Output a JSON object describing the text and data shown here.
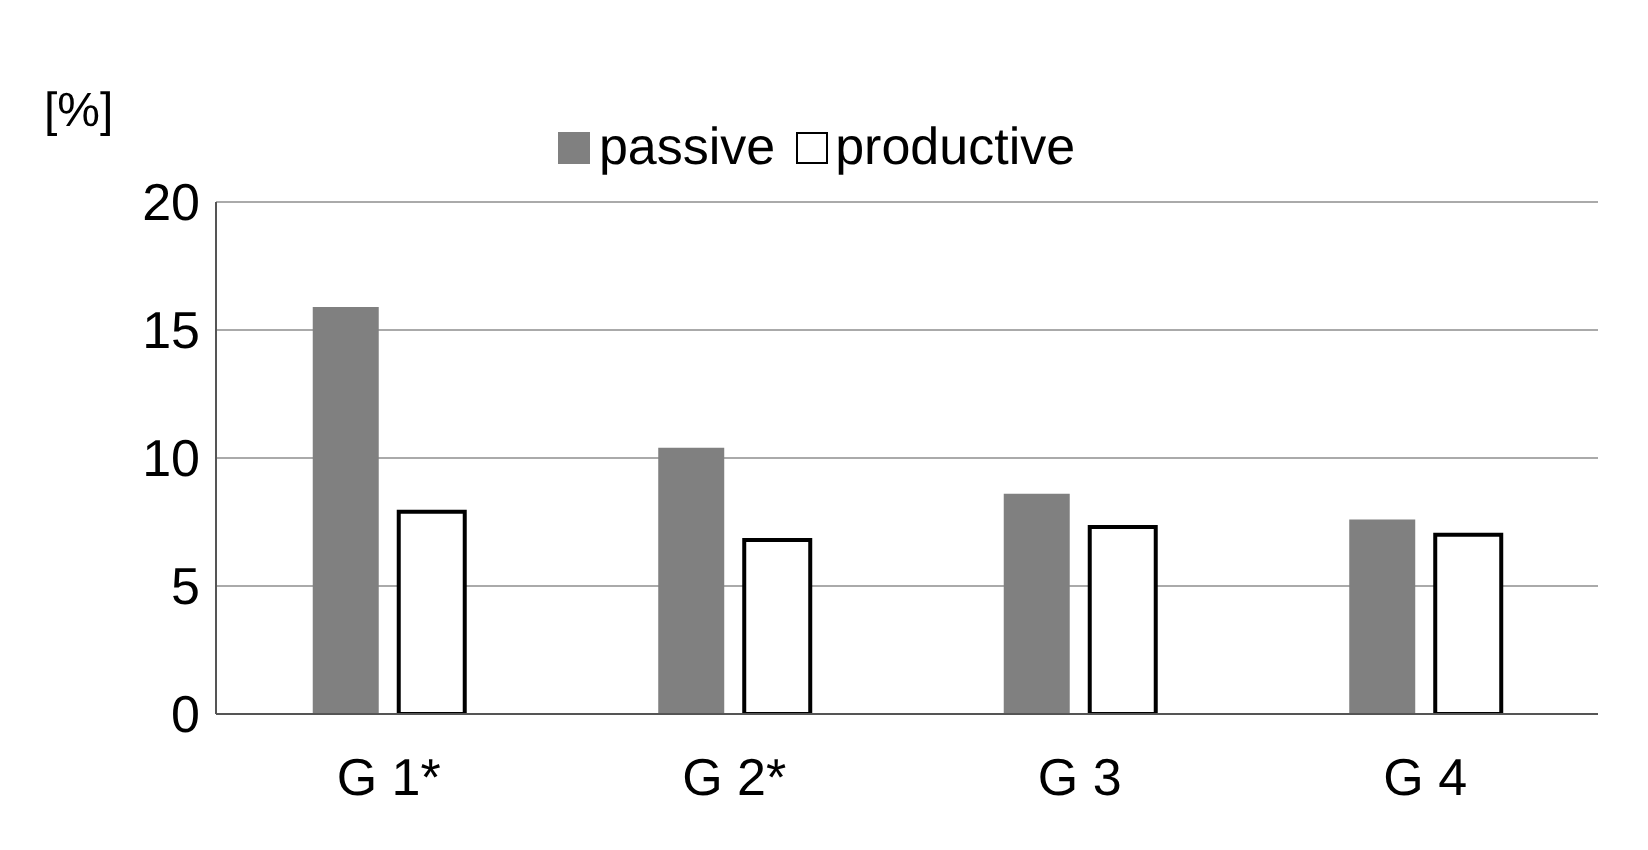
{
  "chart_data": {
    "type": "bar",
    "ylabel": "[%]",
    "categories": [
      "G 1*",
      "G 2*",
      "G 3",
      "G 4"
    ],
    "series": [
      {
        "name": "passive",
        "color": "#808080",
        "values": [
          15.9,
          10.4,
          8.6,
          7.6
        ]
      },
      {
        "name": "productive",
        "color": "#ffffff",
        "values": [
          7.9,
          6.8,
          7.3,
          7.0
        ]
      }
    ],
    "ylim": [
      0,
      20
    ],
    "yticks": [
      0,
      5,
      10,
      15,
      20
    ],
    "grid": "y",
    "legend": "top"
  }
}
